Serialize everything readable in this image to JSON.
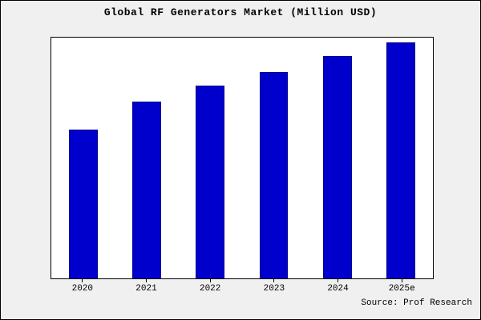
{
  "chart_data": {
    "type": "bar",
    "title": "Global RF Generators Market (Million USD)",
    "categories": [
      "2020",
      "2021",
      "2022",
      "2023",
      "2024",
      "2025e"
    ],
    "values": [
      650,
      770,
      840,
      900,
      970,
      1030
    ],
    "ylim": [
      0,
      1050
    ],
    "xlabel": "",
    "ylabel": "",
    "grid": false,
    "legend": null,
    "bar_color": "#0000cd",
    "bar_edge_color": "#00008b",
    "plot_background": "#ffffff",
    "figure_background": "#f0f0f0"
  },
  "source": "Source: Prof Research"
}
